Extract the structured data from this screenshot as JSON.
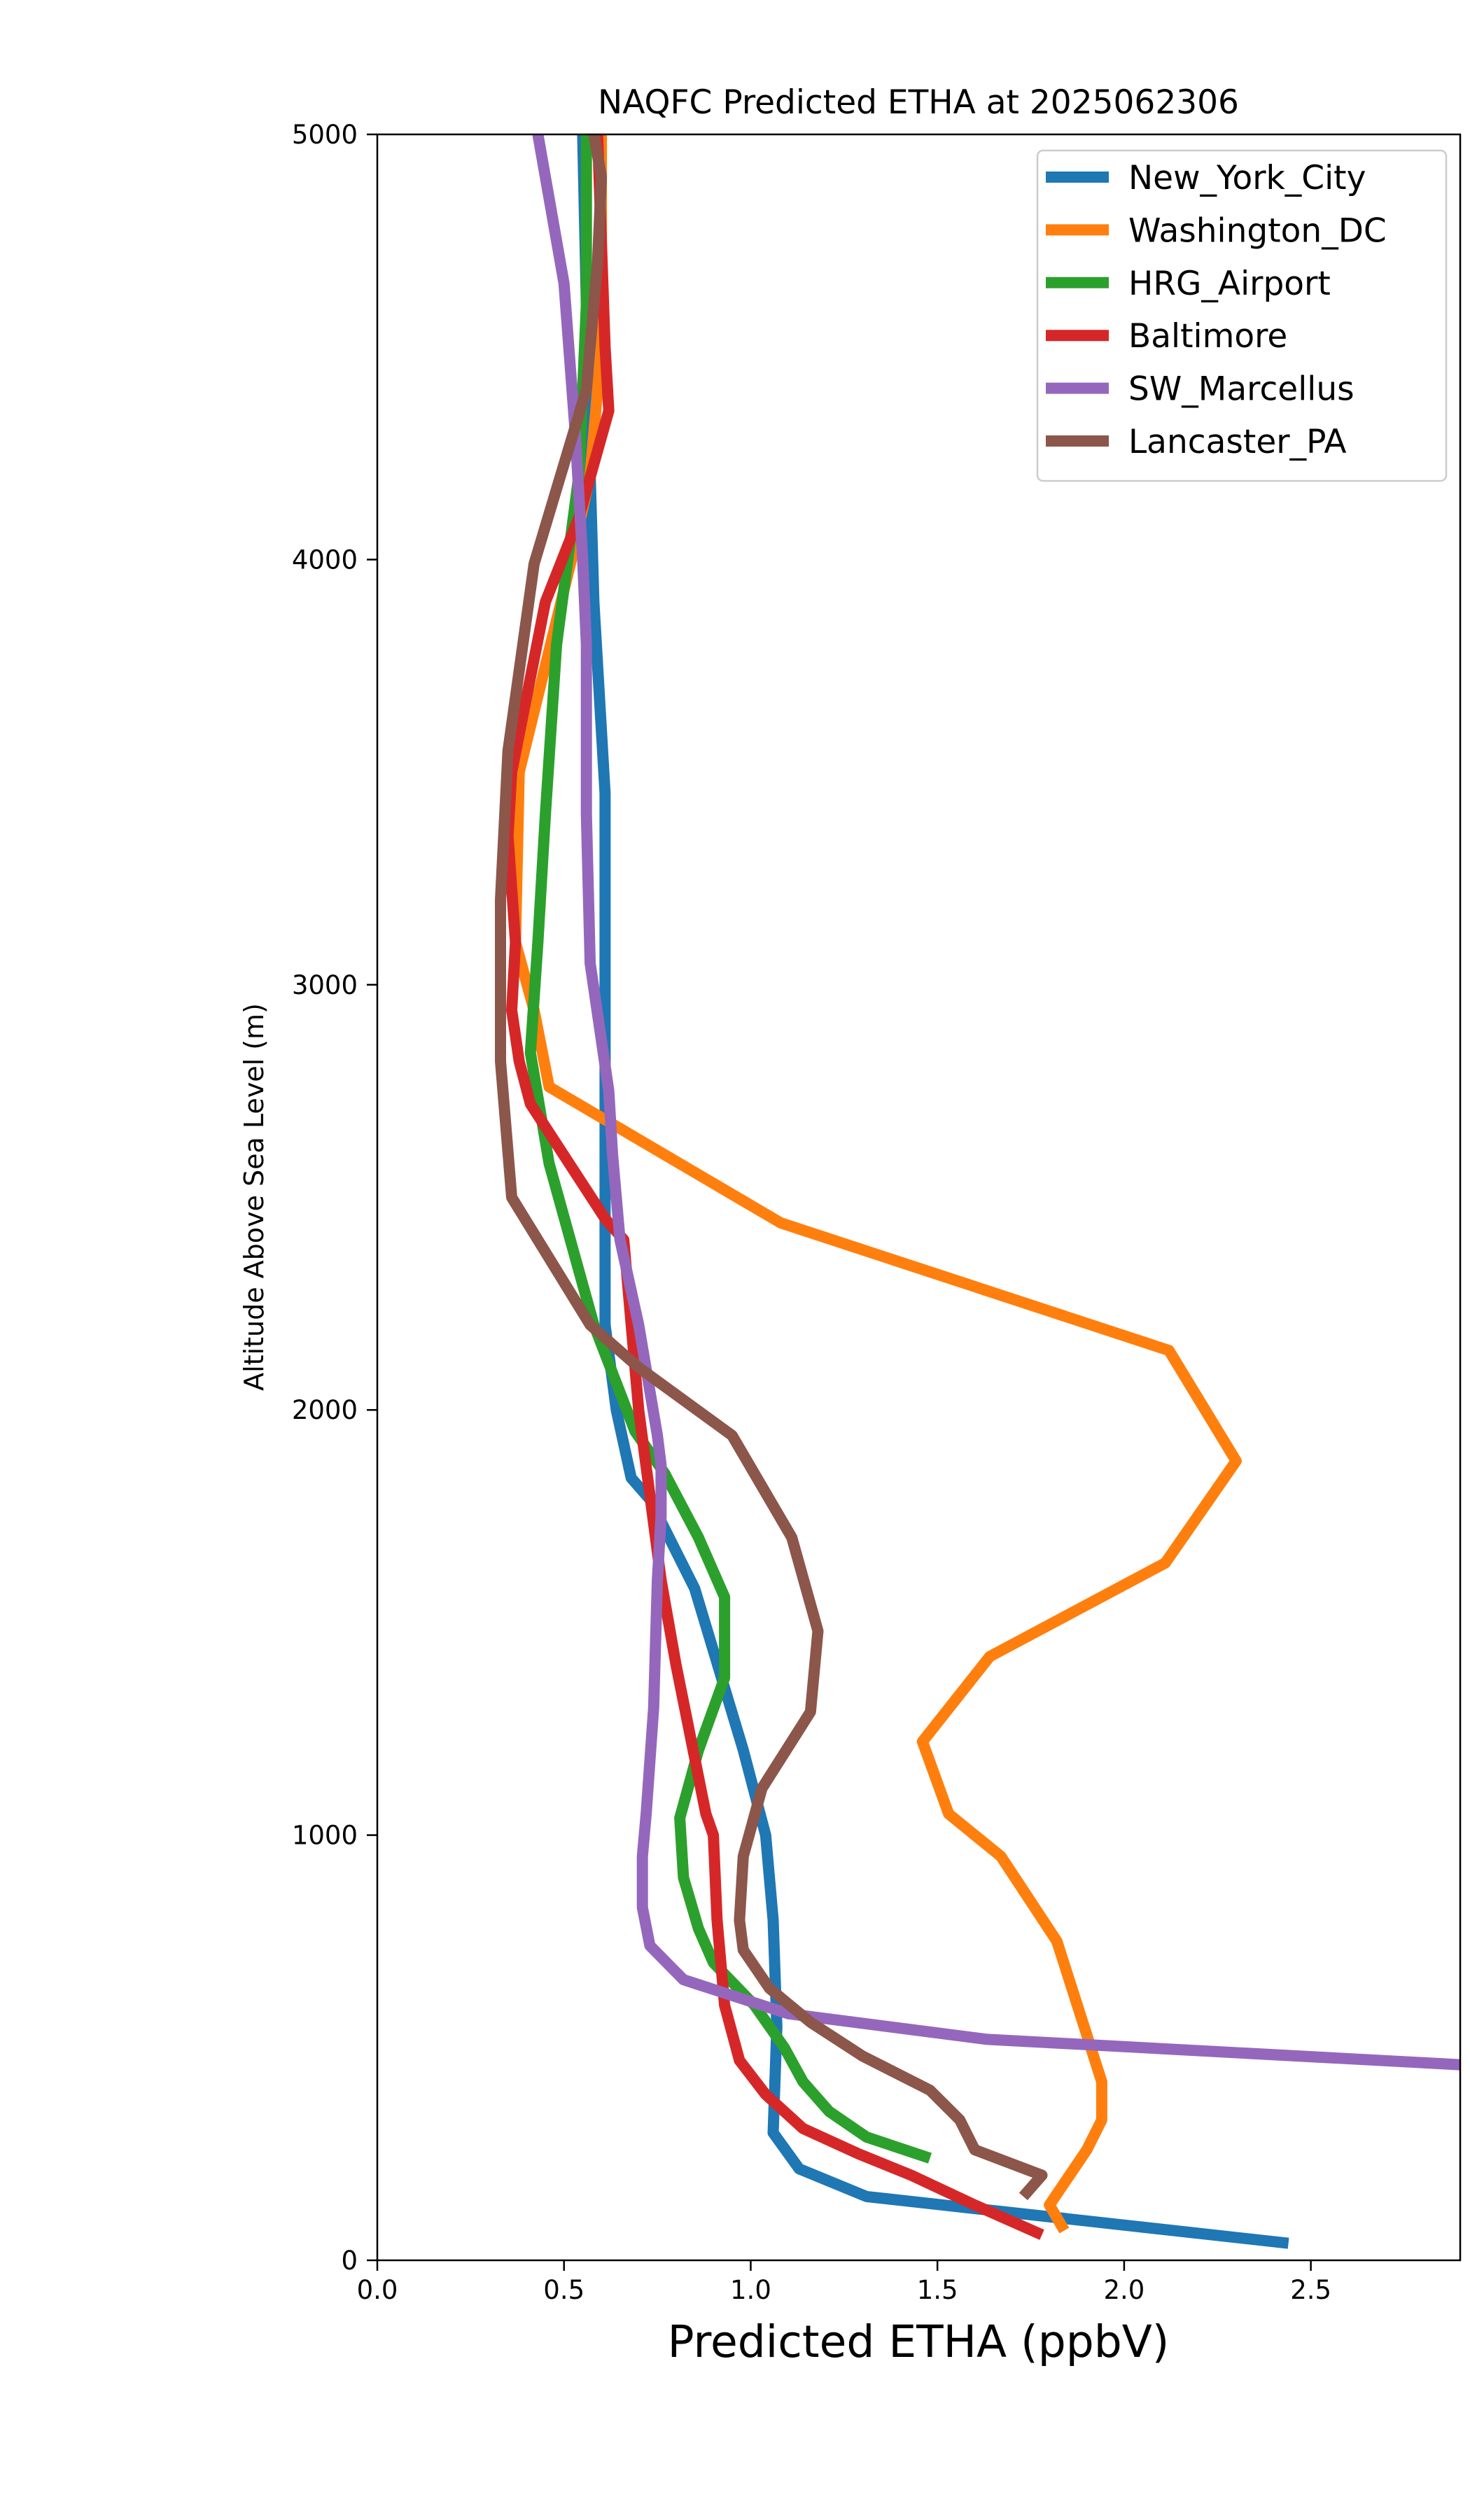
{
  "chart_data": {
    "type": "line",
    "title": "NAQFC Predicted ETHA at 2025062306",
    "xlabel": "Predicted ETHA (ppbV)",
    "ylabel": "Altitude Above Sea Level (m)",
    "xlim": [
      0.0,
      2.9
    ],
    "ylim": [
      0,
      5000
    ],
    "xticks": [
      0.0,
      0.5,
      1.0,
      1.5,
      2.0,
      2.5
    ],
    "xtick_labels": [
      "0.0",
      "0.5",
      "1.0",
      "1.5",
      "2.0",
      "2.5"
    ],
    "yticks": [
      0,
      1000,
      2000,
      3000,
      4000,
      5000
    ],
    "ytick_labels": [
      "0",
      "1000",
      "2000",
      "3000",
      "4000",
      "5000"
    ],
    "grid": false,
    "legend_position": "top-right",
    "series": [
      {
        "name": "New_York_City",
        "color": "#1f77b4",
        "points": [
          [
            2.44,
            40
          ],
          [
            1.31,
            150
          ],
          [
            1.13,
            215
          ],
          [
            1.06,
            300
          ],
          [
            1.07,
            550
          ],
          [
            1.06,
            800
          ],
          [
            1.04,
            1000
          ],
          [
            0.98,
            1200
          ],
          [
            0.85,
            1580
          ],
          [
            0.73,
            1790
          ],
          [
            0.68,
            1840
          ],
          [
            0.64,
            2000
          ],
          [
            0.61,
            2200
          ],
          [
            0.61,
            2400
          ],
          [
            0.61,
            2600
          ],
          [
            0.61,
            2800
          ],
          [
            0.61,
            3050
          ],
          [
            0.61,
            3250
          ],
          [
            0.61,
            3450
          ],
          [
            0.58,
            3900
          ],
          [
            0.57,
            4200
          ],
          [
            0.56,
            4600
          ],
          [
            0.55,
            5000
          ]
        ]
      },
      {
        "name": "Washington_DC",
        "color": "#ff7f0e",
        "points": [
          [
            1.84,
            70
          ],
          [
            1.8,
            130
          ],
          [
            1.9,
            260
          ],
          [
            1.94,
            330
          ],
          [
            1.94,
            420
          ],
          [
            1.82,
            750
          ],
          [
            1.67,
            950
          ],
          [
            1.53,
            1050
          ],
          [
            1.46,
            1220
          ],
          [
            1.64,
            1420
          ],
          [
            2.11,
            1640
          ],
          [
            2.3,
            1880
          ],
          [
            2.12,
            2140
          ],
          [
            1.08,
            2440
          ],
          [
            0.46,
            2760
          ],
          [
            0.42,
            2940
          ],
          [
            0.37,
            3100
          ],
          [
            0.38,
            3500
          ],
          [
            0.52,
            4000
          ],
          [
            0.57,
            4200
          ],
          [
            0.6,
            4500
          ],
          [
            0.6,
            5000
          ]
        ]
      },
      {
        "name": "HRG_Airport",
        "color": "#2ca02c",
        "points": [
          [
            1.48,
            240
          ],
          [
            1.31,
            290
          ],
          [
            1.21,
            350
          ],
          [
            1.14,
            420
          ],
          [
            1.09,
            500
          ],
          [
            1.01,
            600
          ],
          [
            0.9,
            700
          ],
          [
            0.86,
            780
          ],
          [
            0.82,
            900
          ],
          [
            0.81,
            1040
          ],
          [
            0.86,
            1200
          ],
          [
            0.93,
            1370
          ],
          [
            0.93,
            1560
          ],
          [
            0.86,
            1700
          ],
          [
            0.77,
            1850
          ],
          [
            0.69,
            1950
          ],
          [
            0.58,
            2200
          ],
          [
            0.46,
            2580
          ],
          [
            0.41,
            2840
          ],
          [
            0.43,
            3100
          ],
          [
            0.45,
            3400
          ],
          [
            0.48,
            3800
          ],
          [
            0.54,
            4200
          ],
          [
            0.56,
            4600
          ],
          [
            0.56,
            5000
          ]
        ]
      },
      {
        "name": "Baltimore",
        "color": "#d62728",
        "points": [
          [
            1.78,
            60
          ],
          [
            1.6,
            130
          ],
          [
            1.43,
            200
          ],
          [
            1.29,
            250
          ],
          [
            1.14,
            310
          ],
          [
            1.04,
            390
          ],
          [
            0.97,
            470
          ],
          [
            0.93,
            600
          ],
          [
            0.91,
            800
          ],
          [
            0.9,
            1000
          ],
          [
            0.88,
            1050
          ],
          [
            0.8,
            1400
          ],
          [
            0.76,
            1600
          ],
          [
            0.73,
            1800
          ],
          [
            0.7,
            2000
          ],
          [
            0.66,
            2400
          ],
          [
            0.61,
            2450
          ],
          [
            0.41,
            2720
          ],
          [
            0.38,
            2820
          ],
          [
            0.36,
            2940
          ],
          [
            0.37,
            3100
          ],
          [
            0.35,
            3350
          ],
          [
            0.36,
            3500
          ],
          [
            0.45,
            3900
          ],
          [
            0.54,
            4100
          ],
          [
            0.62,
            4350
          ],
          [
            0.61,
            4500
          ],
          [
            0.59,
            5000
          ]
        ]
      },
      {
        "name": "SW_Marcellus",
        "color": "#9467bd",
        "points": [
          [
            2.9,
            460
          ],
          [
            1.63,
            520
          ],
          [
            1.1,
            580
          ],
          [
            0.82,
            660
          ],
          [
            0.73,
            740
          ],
          [
            0.71,
            830
          ],
          [
            0.71,
            950
          ],
          [
            0.72,
            1050
          ],
          [
            0.74,
            1300
          ],
          [
            0.75,
            1600
          ],
          [
            0.76,
            1750
          ],
          [
            0.76,
            1870
          ],
          [
            0.75,
            1940
          ],
          [
            0.7,
            2200
          ],
          [
            0.65,
            2400
          ],
          [
            0.63,
            2600
          ],
          [
            0.62,
            2750
          ],
          [
            0.57,
            3050
          ],
          [
            0.56,
            3400
          ],
          [
            0.56,
            3800
          ],
          [
            0.55,
            4000
          ],
          [
            0.53,
            4300
          ],
          [
            0.5,
            4650
          ],
          [
            0.43,
            5000
          ]
        ]
      },
      {
        "name": "Lancaster_PA",
        "color": "#8c564b",
        "points": [
          [
            1.73,
            150
          ],
          [
            1.78,
            200
          ],
          [
            1.6,
            260
          ],
          [
            1.56,
            330
          ],
          [
            1.48,
            400
          ],
          [
            1.3,
            480
          ],
          [
            1.16,
            560
          ],
          [
            1.05,
            640
          ],
          [
            0.98,
            730
          ],
          [
            0.97,
            800
          ],
          [
            0.98,
            950
          ],
          [
            1.03,
            1110
          ],
          [
            1.16,
            1290
          ],
          [
            1.18,
            1480
          ],
          [
            1.11,
            1700
          ],
          [
            0.95,
            1940
          ],
          [
            0.7,
            2100
          ],
          [
            0.57,
            2200
          ],
          [
            0.36,
            2500
          ],
          [
            0.33,
            2820
          ],
          [
            0.33,
            3200
          ],
          [
            0.35,
            3550
          ],
          [
            0.42,
            3990
          ],
          [
            0.56,
            4400
          ],
          [
            0.59,
            4700
          ],
          [
            0.6,
            4900
          ],
          [
            0.58,
            5000
          ]
        ]
      }
    ]
  }
}
